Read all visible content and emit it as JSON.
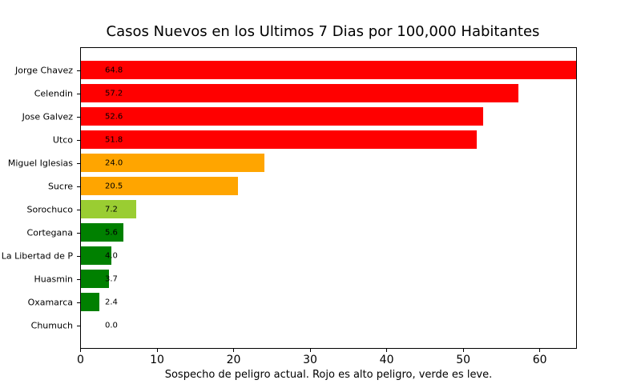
{
  "chart_data": {
    "type": "bar",
    "orientation": "horizontal",
    "title": "Casos Nuevos en los Ultimos 7 Dias por 100,000 Habitantes",
    "xlabel": "Sospecho de peligro actual. Rojo es alto peligro, verde es leve.",
    "categories": [
      "Jorge Chavez",
      "Celendin",
      "Jose Galvez",
      "Utco",
      "Miguel Iglesias",
      "Sucre",
      "Sorochuco",
      "Cortegana",
      "La Libertad de P",
      "Huasmin",
      "Oxamarca",
      "Chumuch"
    ],
    "values": [
      64.8,
      57.2,
      52.6,
      51.8,
      24.0,
      20.5,
      7.2,
      5.6,
      4.0,
      3.7,
      2.4,
      0.0
    ],
    "value_labels": [
      "64.8",
      "57.2",
      "52.6",
      "51.8",
      "24.0",
      "20.5",
      "7.2",
      "5.6",
      "4.0",
      "3.7",
      "2.4",
      "0.0"
    ],
    "bar_colors": [
      "#ff0000",
      "#ff0000",
      "#ff0000",
      "#ff0000",
      "#ffa500",
      "#ffa500",
      "#9acd32",
      "#008000",
      "#008000",
      "#008000",
      "#008000",
      "#008000"
    ],
    "xlim": [
      0,
      64.8
    ],
    "xticks": [
      0,
      10,
      20,
      30,
      40,
      50,
      60
    ],
    "grid": false,
    "legend": false,
    "background_color": "#ffffff",
    "color_meaning": {
      "high_danger": "#ff0000",
      "medium_danger": "#ffa500",
      "low_medium": "#9acd32",
      "low_danger": "#008000"
    }
  }
}
